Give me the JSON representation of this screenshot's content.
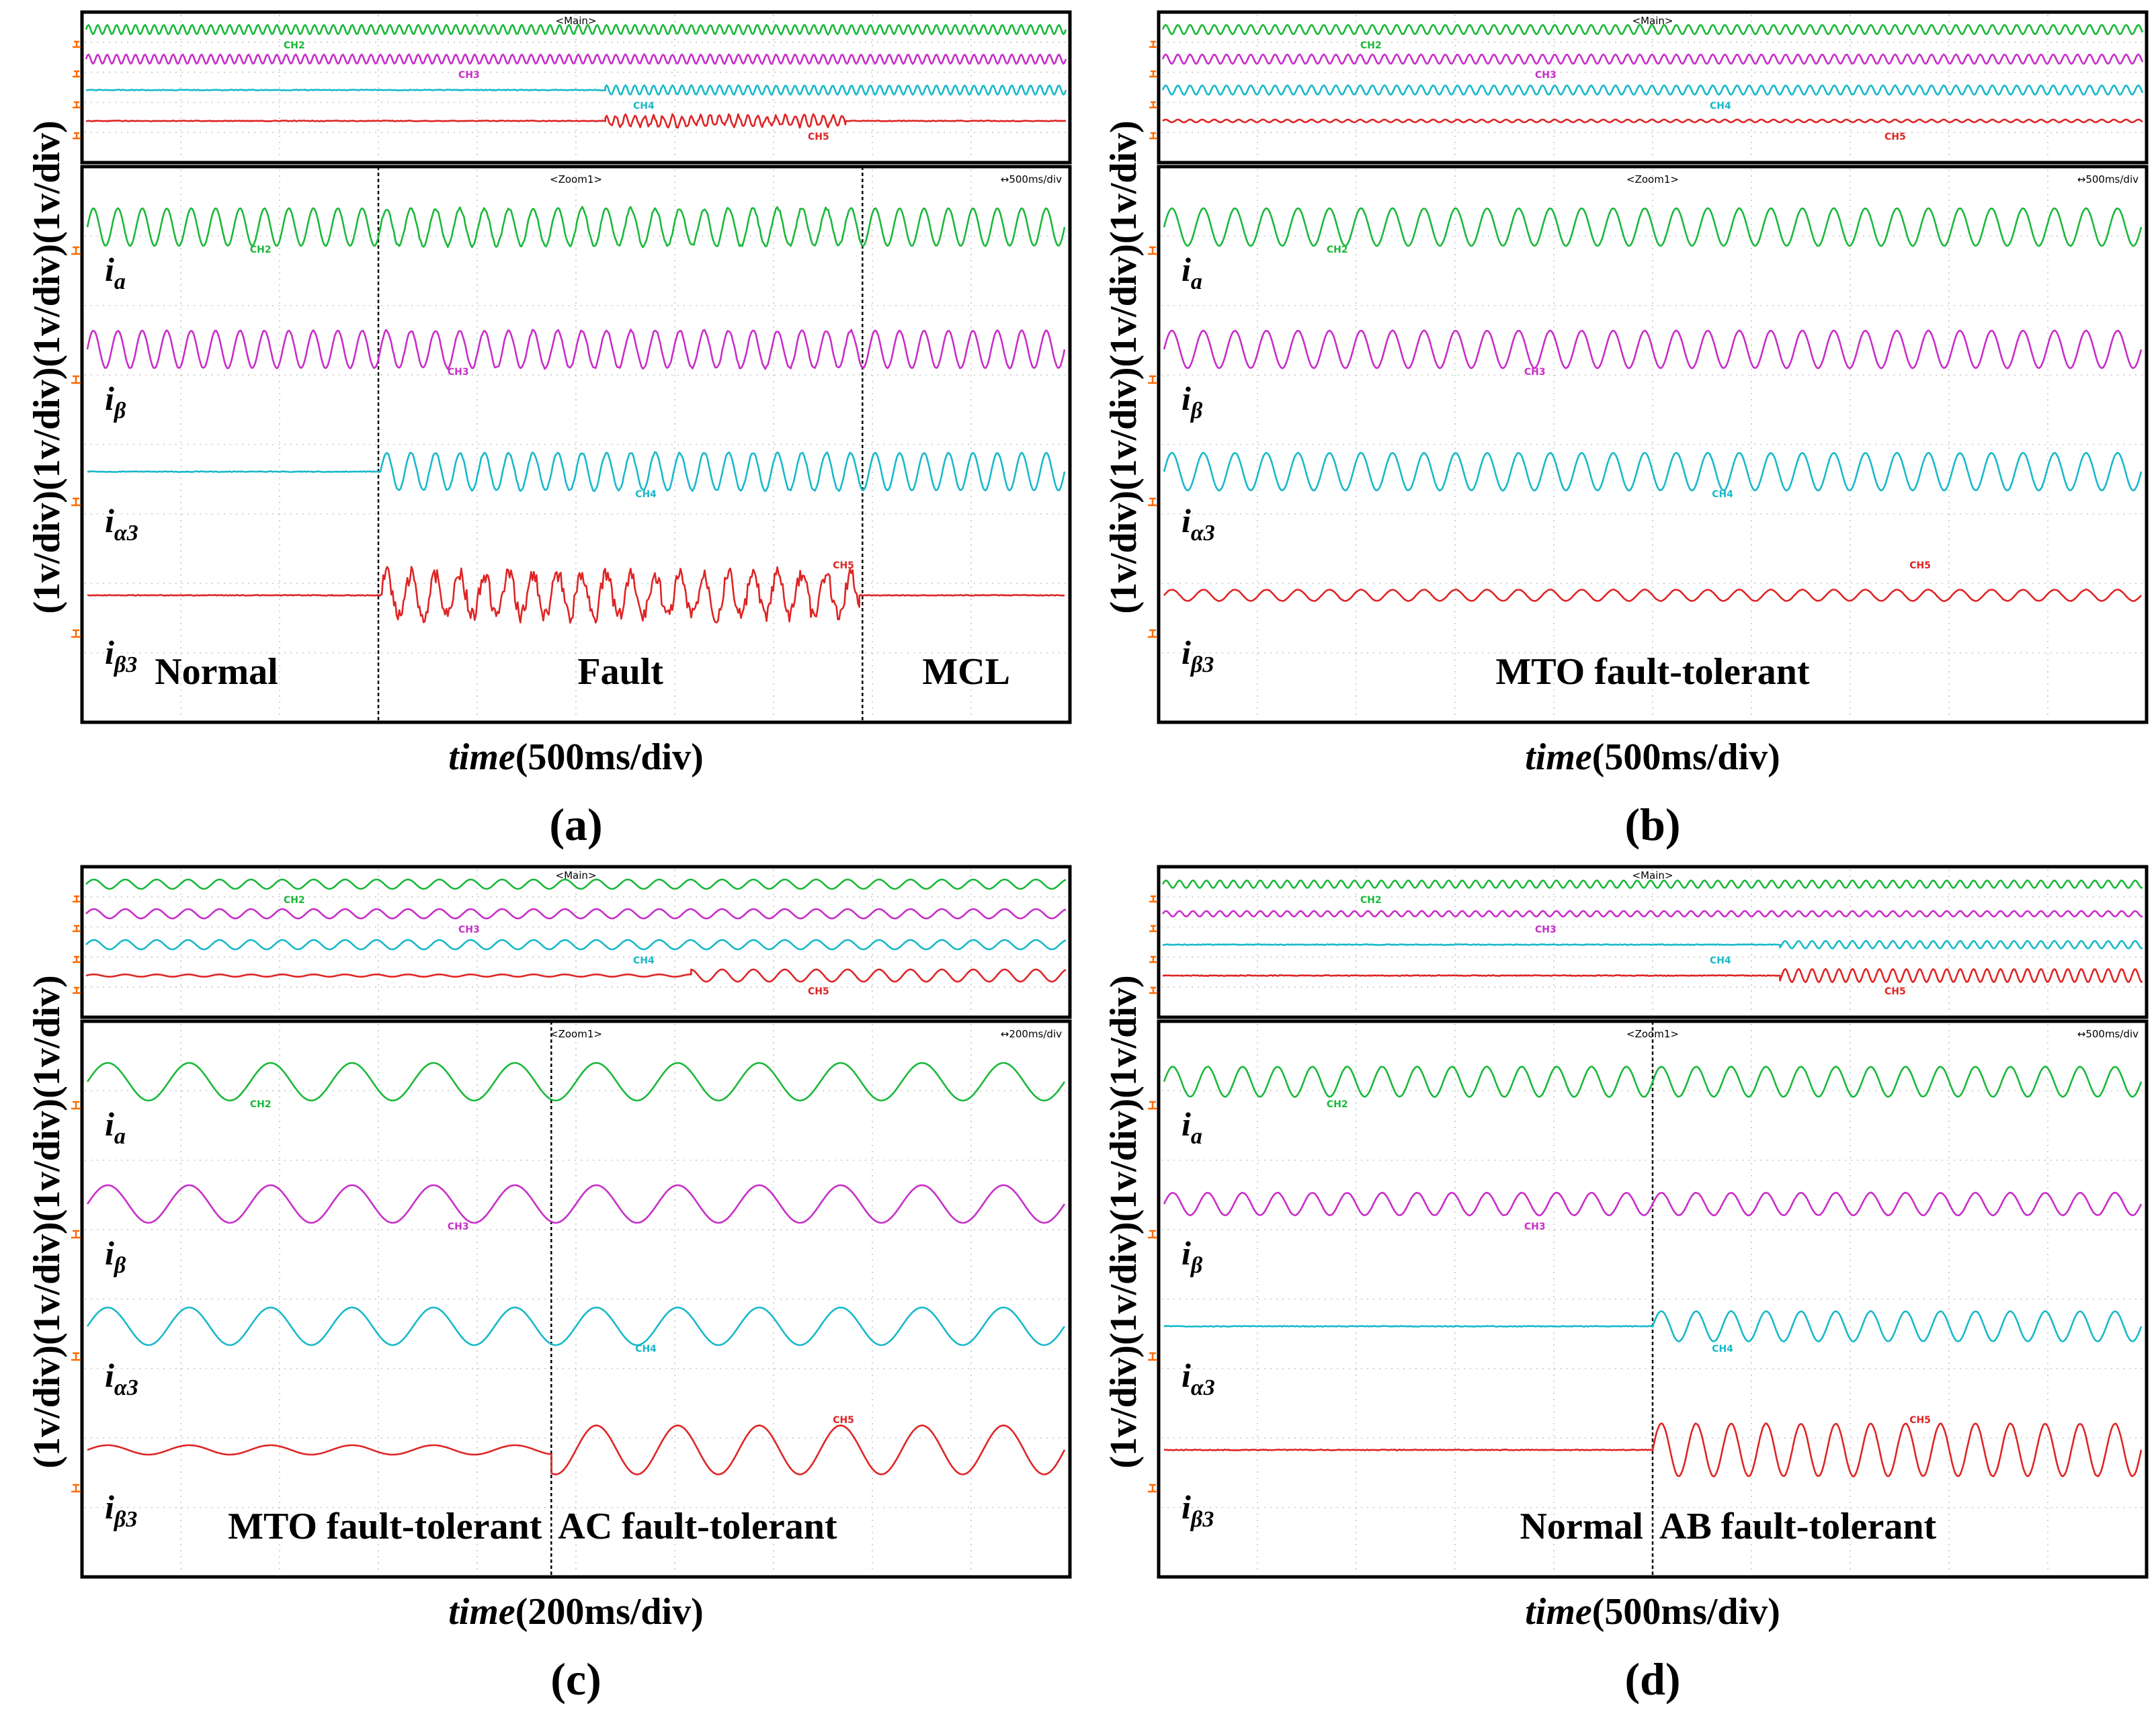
{
  "colors": {
    "a": "#1bb83a",
    "beta": "#c82ec8",
    "alpha3": "#18b9c9",
    "beta3": "#de2525",
    "gnd": "#ff6a00"
  },
  "chart_data": [
    {
      "type": "line",
      "panel_label": "(a)",
      "xlabel_italic": "time",
      "xlabel_units": "(500ms/div)",
      "timebase": "↔500ms/div",
      "main_label": "<Main>",
      "zoom_label": "<Zoom1>",
      "ylabel": "(1v/div)(1v/div)(1v/div)(1v/div)",
      "events": [
        0.3,
        0.79
      ],
      "regions": [
        "Normal",
        "Fault",
        "MCL"
      ],
      "series": [
        {
          "key": "a",
          "ch": "CH2",
          "signal": "i",
          "sub": "a",
          "segments": [
            [
              1.0,
              40,
              0.01
            ],
            [
              1.0,
              40,
              0.08
            ],
            [
              1.0,
              40,
              0.01
            ]
          ]
        },
        {
          "key": "beta",
          "ch": "CH3",
          "signal": "i",
          "sub": "β",
          "segments": [
            [
              1.0,
              40,
              0.02
            ],
            [
              1.0,
              40,
              0.06
            ],
            [
              1.0,
              40,
              0.02
            ]
          ]
        },
        {
          "key": "alpha3",
          "ch": "CH4",
          "signal": "i",
          "sub": "α3",
          "segments": [
            [
              0.0,
              40,
              0.0
            ],
            [
              1.0,
              40,
              0.05
            ],
            [
              1.0,
              40,
              0.01
            ]
          ]
        },
        {
          "key": "beta3",
          "ch": "CH5",
          "signal": "i",
          "sub": "β3",
          "segments": [
            [
              0.0,
              40,
              0.0
            ],
            [
              1.1,
              40,
              0.45
            ],
            [
              0.0,
              40,
              0.0
            ]
          ]
        }
      ]
    },
    {
      "type": "line",
      "panel_label": "(b)",
      "xlabel_italic": "time",
      "xlabel_units": "(500ms/div)",
      "timebase": "↔500ms/div",
      "main_label": "<Main>",
      "zoom_label": "<Zoom1>",
      "ylabel": "(1v/div)(1v/div)(1v/div)(1v/div)",
      "events": [],
      "regions": [
        "MTO fault-tolerant"
      ],
      "series": [
        {
          "key": "a",
          "ch": "CH2",
          "signal": "i",
          "sub": "a",
          "segments": [
            [
              1.0,
              31,
              0.01
            ]
          ]
        },
        {
          "key": "beta",
          "ch": "CH3",
          "signal": "i",
          "sub": "β",
          "segments": [
            [
              1.0,
              31,
              0.01
            ]
          ]
        },
        {
          "key": "alpha3",
          "ch": "CH4",
          "signal": "i",
          "sub": "α3",
          "segments": [
            [
              1.0,
              31,
              0.01
            ]
          ]
        },
        {
          "key": "beta3",
          "ch": "CH5",
          "signal": "i",
          "sub": "β3",
          "segments": [
            [
              0.3,
              31,
              0.01
            ]
          ]
        }
      ]
    },
    {
      "type": "line",
      "panel_label": "(c)",
      "xlabel_italic": "time",
      "xlabel_units": "(200ms/div)",
      "timebase": "↔200ms/div",
      "main_label": "<Main>",
      "zoom_label": "<Zoom1>",
      "ylabel": "(1v/div)(1v/div)(1v/div)(1v/div)",
      "events": [
        0.475
      ],
      "regions": [
        "MTO fault-tolerant",
        "AC fault-tolerant"
      ],
      "series": [
        {
          "key": "a",
          "ch": "CH2",
          "signal": "i",
          "sub": "a",
          "segments": [
            [
              1.0,
              12,
              0.0
            ],
            [
              1.0,
              12,
              0.0
            ]
          ]
        },
        {
          "key": "beta",
          "ch": "CH3",
          "signal": "i",
          "sub": "β",
          "segments": [
            [
              1.0,
              12,
              0.0
            ],
            [
              1.0,
              12,
              0.0
            ]
          ]
        },
        {
          "key": "alpha3",
          "ch": "CH4",
          "signal": "i",
          "sub": "α3",
          "segments": [
            [
              1.0,
              12,
              0.0
            ],
            [
              1.0,
              12,
              0.0
            ]
          ]
        },
        {
          "key": "beta3",
          "ch": "CH5",
          "signal": "i",
          "sub": "β3",
          "segments": [
            [
              0.25,
              12,
              0.0
            ],
            [
              1.3,
              12,
              0.0
            ]
          ]
        }
      ]
    },
    {
      "type": "line",
      "panel_label": "(d)",
      "xlabel_italic": "time",
      "xlabel_units": "(500ms/div)",
      "timebase": "↔500ms/div",
      "main_label": "<Main>",
      "zoom_label": "<Zoom1>",
      "ylabel": "(1v/div)(1v/div)(1v/div)(1v/div)",
      "events": [
        0.5
      ],
      "regions": [
        "Normal",
        "AB fault-tolerant"
      ],
      "series": [
        {
          "key": "a",
          "ch": "CH2",
          "signal": "i",
          "sub": "a",
          "segments": [
            [
              0.8,
              28,
              0.01
            ],
            [
              0.8,
              28,
              0.01
            ]
          ]
        },
        {
          "key": "beta",
          "ch": "CH3",
          "signal": "i",
          "sub": "β",
          "segments": [
            [
              0.6,
              28,
              0.01
            ],
            [
              0.6,
              28,
              0.01
            ]
          ]
        },
        {
          "key": "alpha3",
          "ch": "CH4",
          "signal": "i",
          "sub": "α3",
          "segments": [
            [
              0.0,
              28,
              0.0
            ],
            [
              0.8,
              28,
              0.01
            ]
          ]
        },
        {
          "key": "beta3",
          "ch": "CH5",
          "signal": "i",
          "sub": "β3",
          "segments": [
            [
              0.0,
              28,
              0.0
            ],
            [
              1.4,
              28,
              0.02
            ]
          ]
        }
      ]
    }
  ]
}
